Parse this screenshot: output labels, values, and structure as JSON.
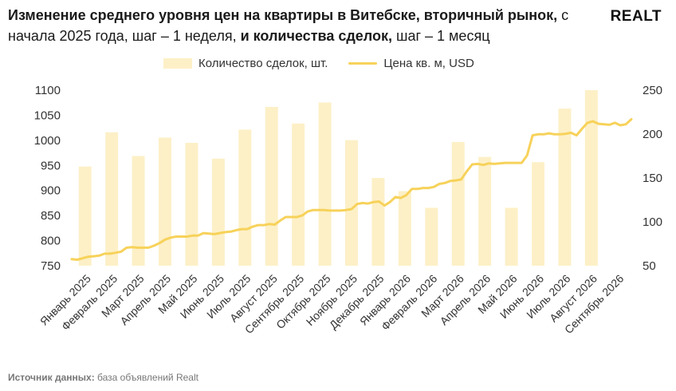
{
  "header": {
    "title_bold_1": "Изменение среднего уровня цен на квартиры в Витебске, вторичный рынок,",
    "title_normal_1": " с начала 2025 года, шаг – 1 неделя, ",
    "title_bold_2": "и количества сделок,",
    "title_normal_2": " шаг – 1 месяц",
    "logo": "REALT"
  },
  "source": {
    "label": "Источник данных:",
    "text": " база объявлений Realt"
  },
  "colors": {
    "bar": "#fdf0c7",
    "line": "#f7d25a",
    "axis_text": "#333333"
  },
  "chart_data": {
    "type": "bar+line",
    "legend": {
      "bars": "Количество сделок, шт.",
      "line": "Цена кв. м, USD",
      "placement": "top"
    },
    "categories": [
      "Январь 2025",
      "Февраль 2025",
      "Март 2025",
      "Апрель 2025",
      "Май 2025",
      "Июнь 2025",
      "Июль 2025",
      "Август 2025",
      "Сентябрь 2025",
      "Октябрь 2025",
      "Ноябрь 2025",
      "Декабрь 2025",
      "Январь 2026",
      "Февраль 2026",
      "Март 2026",
      "Апрель 2026",
      "Май 2026",
      "Июнь 2026",
      "Июль 2026",
      "Август 2026",
      "Сентябрь 2026"
    ],
    "y_left": {
      "min": 750,
      "max": 1100,
      "ticks": [
        750,
        800,
        850,
        900,
        950,
        1000,
        1050,
        1100
      ]
    },
    "y_right": {
      "min": 50,
      "max": 250,
      "ticks": [
        50,
        100,
        150,
        200,
        250
      ]
    },
    "grid": false,
    "bar_series": {
      "name": "Количество сделок, шт.",
      "axis": "right",
      "values": [
        163,
        202,
        175,
        196,
        190,
        172,
        205,
        231,
        212,
        236,
        193,
        150,
        135,
        116,
        191,
        174,
        116,
        168,
        229,
        250,
        0
      ]
    },
    "line_series": {
      "name": "Цена кв. м, USD",
      "axis": "left",
      "values": [
        763,
        762,
        765,
        768,
        769,
        770,
        774,
        774,
        776,
        778,
        786,
        787,
        786,
        786,
        786,
        790,
        795,
        802,
        806,
        808,
        808,
        808,
        810,
        810,
        815,
        814,
        813,
        815,
        817,
        818,
        821,
        823,
        823,
        828,
        831,
        831,
        833,
        832,
        840,
        847,
        847,
        847,
        850,
        858,
        861,
        861,
        861,
        860,
        860,
        860,
        861,
        863,
        873,
        875,
        874,
        877,
        878,
        870,
        877,
        887,
        885,
        891,
        903,
        903,
        905,
        905,
        907,
        913,
        915,
        919,
        920,
        922,
        938,
        952,
        953,
        951,
        954,
        953,
        954,
        955,
        955,
        955,
        955,
        970,
        1010,
        1012,
        1012,
        1014,
        1012,
        1012,
        1013,
        1015,
        1010,
        1023,
        1035,
        1038,
        1033,
        1032,
        1031,
        1035,
        1030,
        1032,
        1042
      ]
    }
  }
}
